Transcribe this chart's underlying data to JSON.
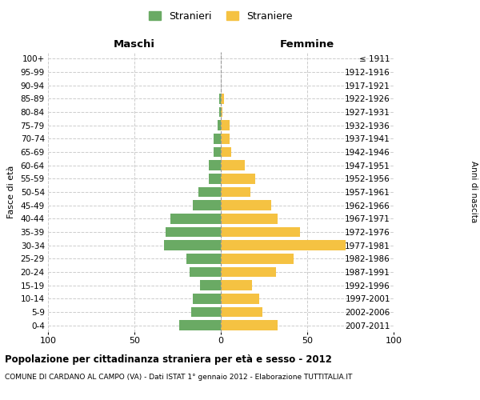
{
  "age_groups": [
    "0-4",
    "5-9",
    "10-14",
    "15-19",
    "20-24",
    "25-29",
    "30-34",
    "35-39",
    "40-44",
    "45-49",
    "50-54",
    "55-59",
    "60-64",
    "65-69",
    "70-74",
    "75-79",
    "80-84",
    "85-89",
    "90-94",
    "95-99",
    "100+"
  ],
  "birth_years": [
    "2007-2011",
    "2002-2006",
    "1997-2001",
    "1992-1996",
    "1987-1991",
    "1982-1986",
    "1977-1981",
    "1972-1976",
    "1967-1971",
    "1962-1966",
    "1957-1961",
    "1952-1956",
    "1947-1951",
    "1942-1946",
    "1937-1941",
    "1932-1936",
    "1927-1931",
    "1922-1926",
    "1917-1921",
    "1912-1916",
    "≤ 1911"
  ],
  "maschi": [
    24,
    17,
    16,
    12,
    18,
    20,
    33,
    32,
    29,
    16,
    13,
    7,
    7,
    4,
    4,
    2,
    1,
    1,
    0,
    0,
    0
  ],
  "femmine": [
    33,
    24,
    22,
    18,
    32,
    42,
    72,
    46,
    33,
    29,
    17,
    20,
    14,
    6,
    5,
    5,
    1,
    2,
    0,
    0,
    0
  ],
  "color_maschi": "#6aaa64",
  "color_femmine": "#f5c242",
  "background_color": "#ffffff",
  "grid_color": "#cccccc",
  "title": "Popolazione per cittadinanza straniera per età e sesso - 2012",
  "subtitle": "COMUNE DI CARDANO AL CAMPO (VA) - Dati ISTAT 1° gennaio 2012 - Elaborazione TUTTITALIA.IT",
  "xlabel_left": "Maschi",
  "xlabel_right": "Femmine",
  "ylabel_left": "Fasce di età",
  "ylabel_right": "Anni di nascita",
  "xlim": 100,
  "legend_maschi": "Stranieri",
  "legend_femmine": "Straniere"
}
